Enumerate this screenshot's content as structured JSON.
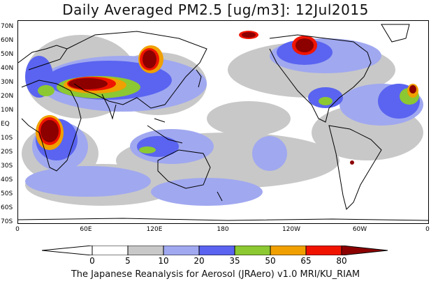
{
  "title": "Daily Averaged PM2.5 [ug/m3]: 12Jul2015",
  "footer": "The Japanese Reanalysis for Aerosol (JRAero) v1.0 MRI/KU_RIAM",
  "lat_labels": [
    "70N",
    "60N",
    "50N",
    "40N",
    "30N",
    "20N",
    "10N",
    "EQ",
    "10S",
    "20S",
    "30S",
    "40S",
    "50S",
    "60S",
    "70S"
  ],
  "lon_labels": [
    "0",
    "60E",
    "120E",
    "180",
    "120W",
    "60W",
    "0"
  ],
  "colorbar": {
    "ticks": [
      "0",
      "5",
      "10",
      "20",
      "35",
      "50",
      "65",
      "80"
    ],
    "colors": [
      "#ffffff",
      "#c8c8c8",
      "#a0a8f0",
      "#5a64f0",
      "#8cc832",
      "#f0a000",
      "#f01400",
      "#8c0000"
    ]
  },
  "colors": {
    "land_outline": "#000000",
    "background": "#ffffff"
  }
}
